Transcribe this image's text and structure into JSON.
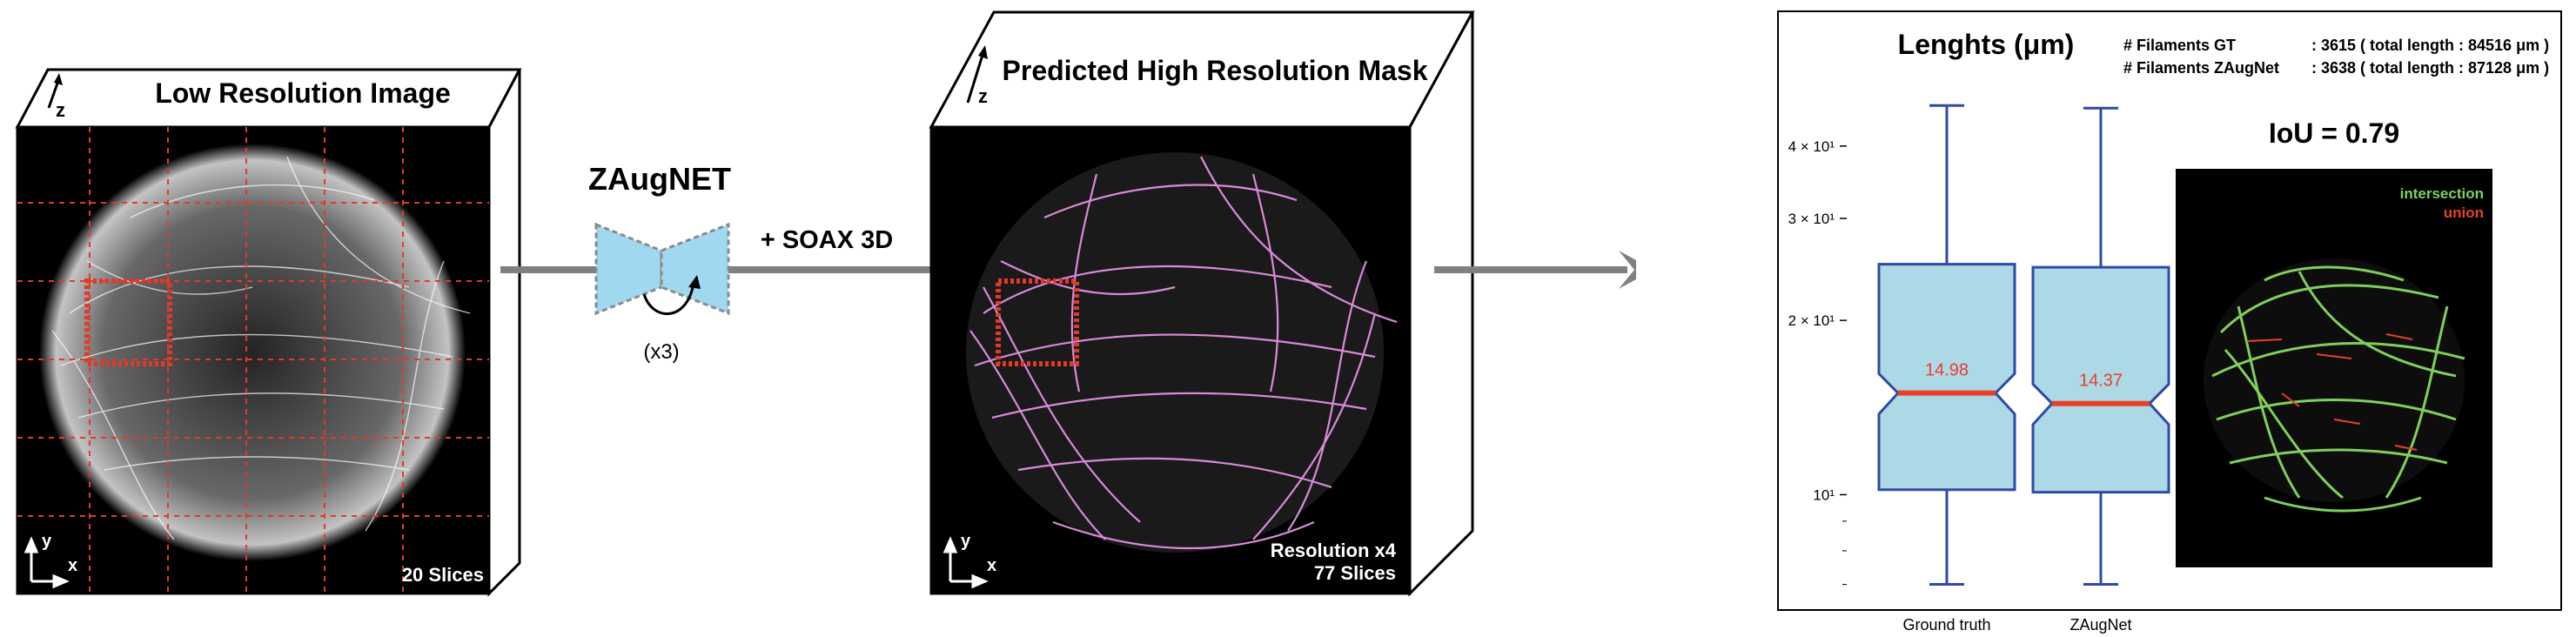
{
  "low_res": {
    "title": "Low Resolution Image",
    "axis_z": "z",
    "axis_y": "y",
    "axis_x": "x",
    "slices": "20 Slices"
  },
  "model": {
    "name": "ZAugNET",
    "repeat": "(x3)",
    "plus": "+ SOAX 3D"
  },
  "high_res": {
    "title": "Predicted High Resolution Mask",
    "axis_z": "z",
    "axis_y": "y",
    "axis_x": "x",
    "resolution": "Resolution x4",
    "slices": "77 Slices"
  },
  "results": {
    "filaments_gt_label": "# Filaments GT",
    "filaments_gt_value": ": 3615  ( total length : 84516 μm )",
    "filaments_zaug_label": "# Filaments ZAugNet",
    "filaments_zaug_value": ": 3638  ( total length : 87128 μm )",
    "iou": "IoU = 0.79",
    "legend_intersection": "intersection",
    "legend_union": "union"
  },
  "colors": {
    "box_fill": "#add8e6",
    "box_edge": "#2f4aa6",
    "median": "#e8402a",
    "filament": "#d98ad9",
    "intersection": "#7fcf5a",
    "union": "#e8402a",
    "arrow": "#808080",
    "grid": "#e03a2a"
  },
  "chart_data": {
    "type": "box",
    "title": "Lenghts (μm)",
    "yscale": "log",
    "ylim": [
      6.3,
      52
    ],
    "ytick_labels": [
      "10¹",
      "2 × 10¹",
      "3 × 10¹",
      "4 × 10¹"
    ],
    "categories": [
      "Ground truth",
      "ZAugNet"
    ],
    "boxes": [
      {
        "whisker_low": 7.0,
        "q1": 10.2,
        "median": 14.98,
        "q3": 25.0,
        "whisker_high": 47.0,
        "median_label": "14.98"
      },
      {
        "whisker_low": 7.0,
        "q1": 10.1,
        "median": 14.37,
        "q3": 24.7,
        "whisker_high": 46.5,
        "median_label": "14.37"
      }
    ],
    "notched": true
  }
}
